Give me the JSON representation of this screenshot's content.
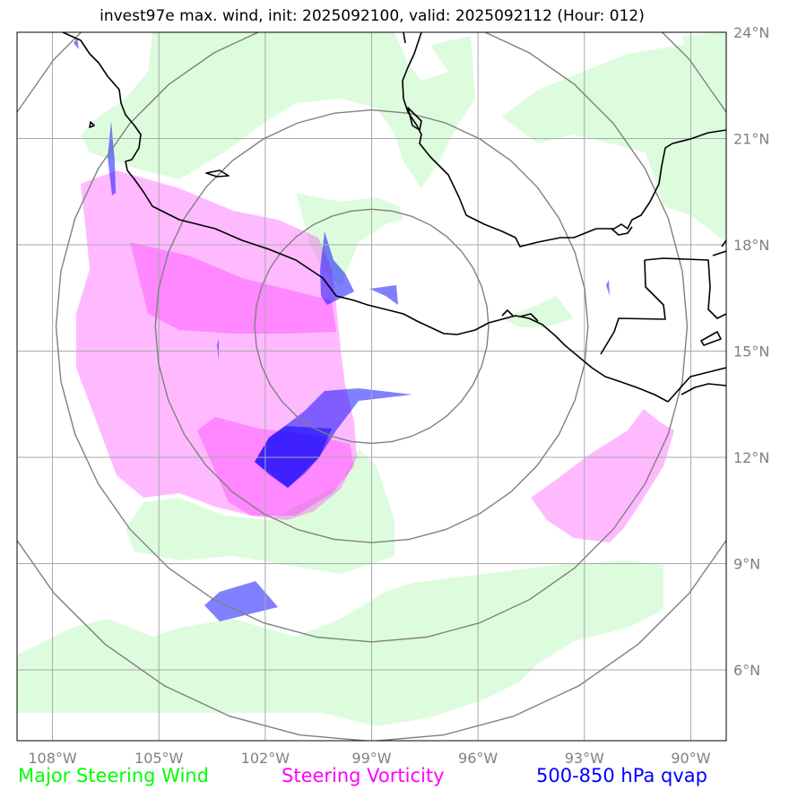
{
  "title": "invest97e max. wind, init: 2025092100, valid: 2025092112 (Hour: 012)",
  "map": {
    "projection": "plate-carree",
    "lon_range": [
      -109,
      -89
    ],
    "lat_range": [
      4,
      24
    ],
    "lon_ticks": [
      {
        "value": -108,
        "label": "108°W"
      },
      {
        "value": -105,
        "label": "105°W"
      },
      {
        "value": -102,
        "label": "102°W"
      },
      {
        "value": -99,
        "label": "99°W"
      },
      {
        "value": -96,
        "label": "96°W"
      },
      {
        "value": -93,
        "label": "93°W"
      },
      {
        "value": -90,
        "label": "90°W"
      }
    ],
    "lat_ticks": [
      {
        "value": 6,
        "label": "6°N"
      },
      {
        "value": 9,
        "label": "9°N"
      },
      {
        "value": 12,
        "label": "12°N"
      },
      {
        "value": 15,
        "label": "15°N"
      },
      {
        "value": 18,
        "label": "18°N"
      },
      {
        "value": 21,
        "label": "21°N"
      },
      {
        "value": 24,
        "label": "24°N"
      }
    ],
    "gridlines": true,
    "range_rings": {
      "center": [
        -99,
        15.7
      ],
      "radius_deg": [
        3.3,
        6.1,
        8.9,
        11.7
      ]
    },
    "layers": {
      "steering_wind_color": "#ddfcdd",
      "vorticity_color": "#ff00ff",
      "vorticity_opacity": 0.27,
      "qvap_color": "#0000ff",
      "qvap_opacity": 0.5
    },
    "coastline_color": "#000000"
  },
  "legend": [
    {
      "label": "Major Steering Wind",
      "color": "#00ff00"
    },
    {
      "label": "Steering Vorticity",
      "color": "#ff00ff"
    },
    {
      "label": "500-850 hPa qvap",
      "color": "#0000ff"
    }
  ]
}
